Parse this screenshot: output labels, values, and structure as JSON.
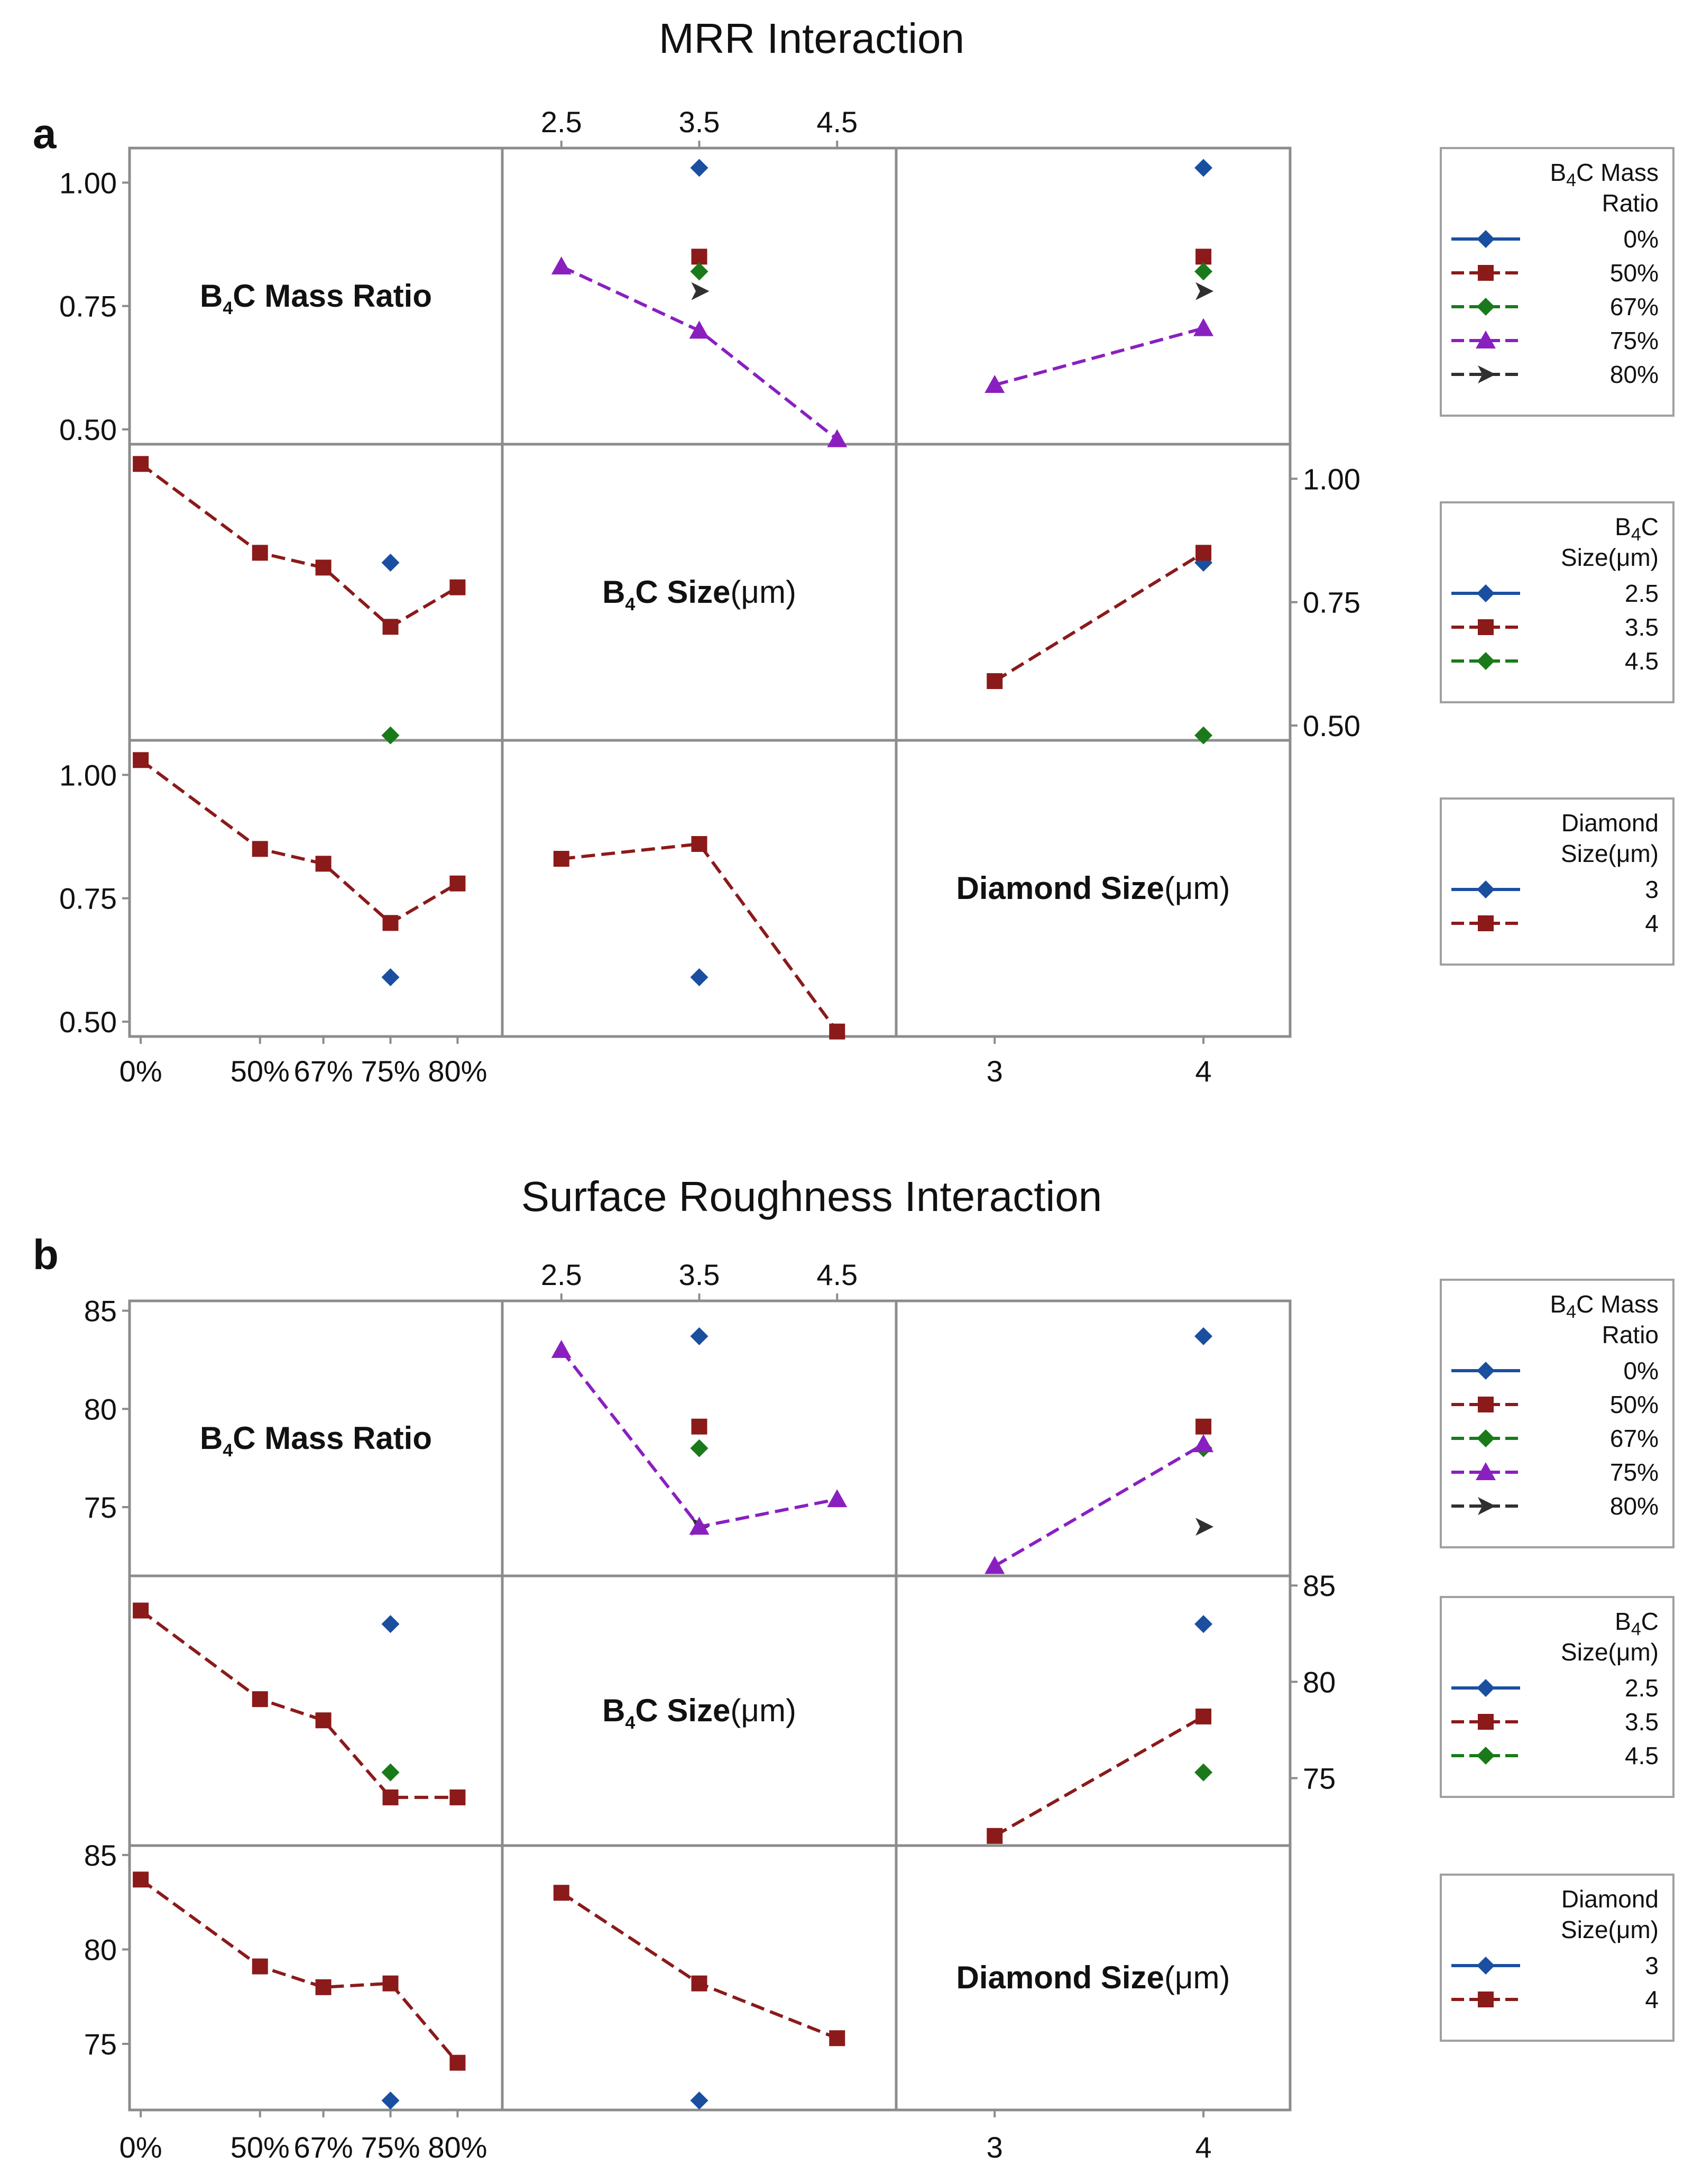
{
  "colors": {
    "0%": "#1a4fa0",
    "50%": "#8b1a1a",
    "67%": "#1a7a1a",
    "75%": "#8a1fc0",
    "80%": "#303030",
    "2.5": "#1a4fa0",
    "3.5": "#8b1a1a",
    "4.5": "#1a7a1a",
    "3": "#1a4fa0",
    "4": "#8b1a1a"
  },
  "chart_data": [
    {
      "id": "a",
      "type": "line",
      "title": "MRR Interaction",
      "panel_label": "a",
      "factors": [
        {
          "key": "mass",
          "title": "B4C Mass Ratio",
          "levels": [
            "0%",
            "50%",
            "67%",
            "75%",
            "80%"
          ],
          "ticks": [
            "0%",
            "50%",
            "67%",
            "75%",
            "80%"
          ]
        },
        {
          "key": "size",
          "title": "B4C Size(μm)",
          "levels": [
            "2.5",
            "3.5",
            "4.5"
          ],
          "ticks": [
            "2.5",
            "3.5",
            "4.5"
          ]
        },
        {
          "key": "diamond",
          "title": "Diamond Size(μm)",
          "levels": [
            "3",
            "4"
          ],
          "ticks": [
            "3",
            "4"
          ]
        }
      ],
      "ylim": [
        0.47,
        1.07
      ],
      "yticks": [
        "0.50",
        "0.75",
        "1.00"
      ],
      "cells": [
        {
          "row": 0,
          "col": 1,
          "series": [
            {
              "name": "0%",
              "line": false,
              "marker": "diamond",
              "x": [
                "3.5"
              ],
              "y": [
                1.03
              ]
            },
            {
              "name": "50%",
              "line": false,
              "marker": "square",
              "x": [
                "3.5"
              ],
              "y": [
                0.85
              ]
            },
            {
              "name": "67%",
              "line": false,
              "marker": "diamond",
              "x": [
                "3.5"
              ],
              "y": [
                0.82
              ]
            },
            {
              "name": "80%",
              "line": false,
              "marker": "triangle-right",
              "x": [
                "3.5"
              ],
              "y": [
                0.78
              ]
            },
            {
              "name": "75%",
              "line": true,
              "marker": "triangle",
              "x": [
                "2.5",
                "3.5",
                "4.5"
              ],
              "y": [
                0.83,
                0.7,
                0.48
              ]
            }
          ]
        },
        {
          "row": 0,
          "col": 2,
          "series": [
            {
              "name": "0%",
              "line": false,
              "marker": "diamond",
              "x": [
                "4"
              ],
              "y": [
                1.03
              ]
            },
            {
              "name": "50%",
              "line": false,
              "marker": "square",
              "x": [
                "4"
              ],
              "y": [
                0.85
              ]
            },
            {
              "name": "67%",
              "line": false,
              "marker": "diamond",
              "x": [
                "4"
              ],
              "y": [
                0.82
              ]
            },
            {
              "name": "80%",
              "line": false,
              "marker": "triangle-right",
              "x": [
                "4"
              ],
              "y": [
                0.78
              ]
            },
            {
              "name": "75%",
              "line": true,
              "marker": "triangle",
              "x": [
                "3",
                "4"
              ],
              "y": [
                0.59,
                0.705
              ]
            }
          ]
        },
        {
          "row": 1,
          "col": 0,
          "series": [
            {
              "name": "2.5",
              "line": false,
              "marker": "diamond",
              "x": [
                "75%"
              ],
              "y": [
                0.83
              ]
            },
            {
              "name": "4.5",
              "line": false,
              "marker": "diamond",
              "x": [
                "75%"
              ],
              "y": [
                0.48
              ]
            },
            {
              "name": "3.5",
              "line": true,
              "marker": "square",
              "x": [
                "0%",
                "50%",
                "67%",
                "75%",
                "80%"
              ],
              "y": [
                1.03,
                0.85,
                0.82,
                0.7,
                0.78
              ]
            }
          ]
        },
        {
          "row": 1,
          "col": 2,
          "series": [
            {
              "name": "2.5",
              "line": false,
              "marker": "diamond",
              "x": [
                "4"
              ],
              "y": [
                0.83
              ]
            },
            {
              "name": "4.5",
              "line": false,
              "marker": "diamond",
              "x": [
                "4"
              ],
              "y": [
                0.48
              ]
            },
            {
              "name": "3.5",
              "line": true,
              "marker": "square",
              "x": [
                "3",
                "4"
              ],
              "y": [
                0.59,
                0.85
              ]
            }
          ]
        },
        {
          "row": 2,
          "col": 0,
          "series": [
            {
              "name": "3",
              "line": false,
              "marker": "diamond",
              "x": [
                "75%"
              ],
              "y": [
                0.59
              ]
            },
            {
              "name": "4",
              "line": true,
              "marker": "square",
              "x": [
                "0%",
                "50%",
                "67%",
                "75%",
                "80%"
              ],
              "y": [
                1.03,
                0.85,
                0.82,
                0.7,
                0.78
              ]
            }
          ]
        },
        {
          "row": 2,
          "col": 1,
          "series": [
            {
              "name": "3",
              "line": false,
              "marker": "diamond",
              "x": [
                "3.5"
              ],
              "y": [
                0.59
              ]
            },
            {
              "name": "4",
              "line": true,
              "marker": "square",
              "x": [
                "2.5",
                "3.5",
                "4.5"
              ],
              "y": [
                0.83,
                0.86,
                0.48
              ]
            }
          ]
        }
      ],
      "legends": [
        {
          "title": [
            "B4C Mass",
            "Ratio"
          ],
          "entries": [
            {
              "label": "0%",
              "marker": "diamond"
            },
            {
              "label": "50%",
              "marker": "square"
            },
            {
              "label": "67%",
              "marker": "diamond"
            },
            {
              "label": "75%",
              "marker": "triangle"
            },
            {
              "label": "80%",
              "marker": "triangle-right"
            }
          ]
        },
        {
          "title": [
            "B4C",
            "Size(μm)"
          ],
          "entries": [
            {
              "label": "2.5",
              "marker": "diamond"
            },
            {
              "label": "3.5",
              "marker": "square"
            },
            {
              "label": "4.5",
              "marker": "diamond"
            }
          ]
        },
        {
          "title": [
            "Diamond",
            "Size(μm)"
          ],
          "entries": [
            {
              "label": "3",
              "marker": "diamond"
            },
            {
              "label": "4",
              "marker": "square"
            }
          ]
        }
      ]
    },
    {
      "id": "b",
      "type": "line",
      "title": "Surface Roughness Interaction",
      "panel_label": "b",
      "factors": [
        {
          "key": "mass",
          "title": "B4C Mass Ratio",
          "levels": [
            "0%",
            "50%",
            "67%",
            "75%",
            "80%"
          ],
          "ticks": [
            "0%",
            "50%",
            "67%",
            "75%",
            "80%"
          ]
        },
        {
          "key": "size",
          "title": "B4C Size(μm)",
          "levels": [
            "2.5",
            "3.5",
            "4.5"
          ],
          "ticks": [
            "2.5",
            "3.5",
            "4.5"
          ]
        },
        {
          "key": "diamond",
          "title": "Diamond Size(μm)",
          "levels": [
            "3",
            "4"
          ],
          "ticks": [
            "3",
            "4"
          ]
        }
      ],
      "ylim": [
        71.5,
        85.5
      ],
      "yticks": [
        "75",
        "80",
        "85"
      ],
      "cells": [
        {
          "row": 0,
          "col": 1,
          "series": [
            {
              "name": "0%",
              "line": false,
              "marker": "diamond",
              "x": [
                "3.5"
              ],
              "y": [
                83.7
              ]
            },
            {
              "name": "50%",
              "line": false,
              "marker": "square",
              "x": [
                "3.5"
              ],
              "y": [
                79.1
              ]
            },
            {
              "name": "67%",
              "line": false,
              "marker": "diamond",
              "x": [
                "3.5"
              ],
              "y": [
                78.0
              ]
            },
            {
              "name": "80%",
              "line": false,
              "marker": "triangle-right",
              "x": [
                "3.5"
              ],
              "y": [
                74.0
              ]
            },
            {
              "name": "75%",
              "line": true,
              "marker": "triangle",
              "x": [
                "2.5",
                "3.5",
                "4.5"
              ],
              "y": [
                83.0,
                74.0,
                75.4
              ]
            }
          ]
        },
        {
          "row": 0,
          "col": 2,
          "series": [
            {
              "name": "0%",
              "line": false,
              "marker": "diamond",
              "x": [
                "4"
              ],
              "y": [
                83.7
              ]
            },
            {
              "name": "50%",
              "line": false,
              "marker": "square",
              "x": [
                "4"
              ],
              "y": [
                79.1
              ]
            },
            {
              "name": "67%",
              "line": false,
              "marker": "diamond",
              "x": [
                "4"
              ],
              "y": [
                78.0
              ]
            },
            {
              "name": "80%",
              "line": false,
              "marker": "triangle-right",
              "x": [
                "4"
              ],
              "y": [
                74.0
              ]
            },
            {
              "name": "75%",
              "line": true,
              "marker": "triangle",
              "x": [
                "3",
                "4"
              ],
              "y": [
                72.0,
                78.2
              ]
            }
          ]
        },
        {
          "row": 1,
          "col": 0,
          "series": [
            {
              "name": "2.5",
              "line": false,
              "marker": "diamond",
              "x": [
                "75%"
              ],
              "y": [
                83.0
              ]
            },
            {
              "name": "4.5",
              "line": false,
              "marker": "diamond",
              "x": [
                "75%"
              ],
              "y": [
                75.3
              ]
            },
            {
              "name": "3.5",
              "line": true,
              "marker": "square",
              "x": [
                "0%",
                "50%",
                "67%",
                "75%",
                "80%"
              ],
              "y": [
                83.7,
                79.1,
                78.0,
                74.0,
                74.0
              ]
            }
          ]
        },
        {
          "row": 1,
          "col": 2,
          "series": [
            {
              "name": "2.5",
              "line": false,
              "marker": "diamond",
              "x": [
                "4"
              ],
              "y": [
                83.0
              ]
            },
            {
              "name": "4.5",
              "line": false,
              "marker": "diamond",
              "x": [
                "4"
              ],
              "y": [
                75.3
              ]
            },
            {
              "name": "3.5",
              "line": true,
              "marker": "square",
              "x": [
                "3",
                "4"
              ],
              "y": [
                72.0,
                78.2
              ]
            }
          ]
        },
        {
          "row": 2,
          "col": 0,
          "series": [
            {
              "name": "3",
              "line": false,
              "marker": "diamond",
              "x": [
                "75%"
              ],
              "y": [
                72.0
              ]
            },
            {
              "name": "4",
              "line": true,
              "marker": "square",
              "x": [
                "0%",
                "50%",
                "67%",
                "75%",
                "80%"
              ],
              "y": [
                83.7,
                79.1,
                78.0,
                78.2,
                74.0
              ]
            }
          ]
        },
        {
          "row": 2,
          "col": 1,
          "series": [
            {
              "name": "3",
              "line": false,
              "marker": "diamond",
              "x": [
                "3.5"
              ],
              "y": [
                72.0
              ]
            },
            {
              "name": "4",
              "line": true,
              "marker": "square",
              "x": [
                "2.5",
                "3.5",
                "4.5"
              ],
              "y": [
                83.0,
                78.2,
                75.3
              ]
            }
          ]
        }
      ],
      "legends": [
        {
          "title": [
            "B4C Mass",
            "Ratio"
          ],
          "entries": [
            {
              "label": "0%",
              "marker": "diamond"
            },
            {
              "label": "50%",
              "marker": "square"
            },
            {
              "label": "67%",
              "marker": "diamond"
            },
            {
              "label": "75%",
              "marker": "triangle"
            },
            {
              "label": "80%",
              "marker": "triangle-right"
            }
          ]
        },
        {
          "title": [
            "B4C",
            "Size(μm)"
          ],
          "entries": [
            {
              "label": "2.5",
              "marker": "diamond"
            },
            {
              "label": "3.5",
              "marker": "square"
            },
            {
              "label": "4.5",
              "marker": "diamond"
            }
          ]
        },
        {
          "title": [
            "Diamond",
            "Size(μm)"
          ],
          "entries": [
            {
              "label": "3",
              "marker": "diamond"
            },
            {
              "label": "4",
              "marker": "square"
            }
          ]
        }
      ]
    }
  ]
}
